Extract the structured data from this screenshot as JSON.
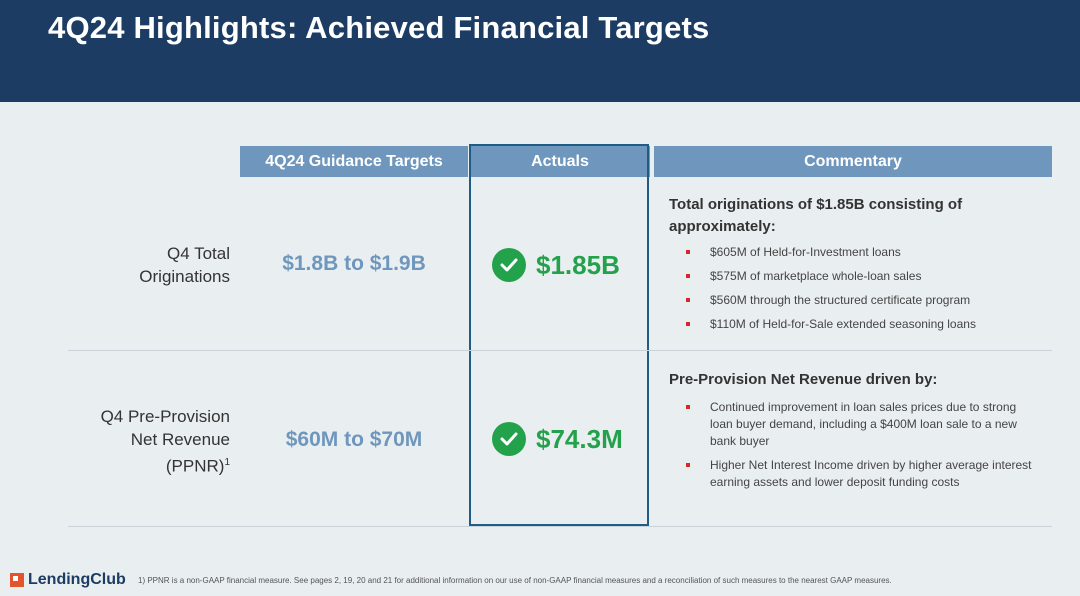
{
  "header": {
    "title": "4Q24 Highlights: Achieved Financial Targets"
  },
  "columns": {
    "guidance": "4Q24 Guidance Targets",
    "actuals": "Actuals",
    "commentary": "Commentary"
  },
  "rows": [
    {
      "label_line1": "Q4 Total",
      "label_line2": "Originations",
      "target": "$1.8B to $1.9B",
      "actual": "$1.85B",
      "comment_title": "Total originations of $1.85B consisting of approximately:",
      "bullets": [
        "$605M of Held-for-Investment loans",
        "$575M of marketplace whole-loan sales",
        "$560M through the structured certificate program",
        "$110M of Held-for-Sale extended seasoning loans"
      ]
    },
    {
      "label_line1": "Q4 Pre-Provision",
      "label_line2": "Net Revenue",
      "label_line3": "(PPNR)",
      "label_sup": "1",
      "target": "$60M to $70M",
      "actual": "$74.3M",
      "comment_title": "Pre-Provision Net Revenue driven by:",
      "bullets": [
        "Continued improvement in loan sales prices due to strong loan buyer demand, including a $400M loan sale to a new bank buyer",
        "Higher Net Interest Income driven by higher average interest earning assets and lower deposit funding costs"
      ]
    }
  ],
  "footer": {
    "logo": "LendingClub",
    "footnote": "1)  PPNR is a non-GAAP financial measure. See pages 2, 19, 20 and 21  for additional information on our use of non-GAAP financial measures and a reconciliation of such measures to the nearest GAAP measures."
  },
  "colors": {
    "header_bg": "#1d3c63",
    "column_header_bg": "#6f97bd",
    "success_green": "#24a14b",
    "bullet_red": "#d9262b"
  }
}
